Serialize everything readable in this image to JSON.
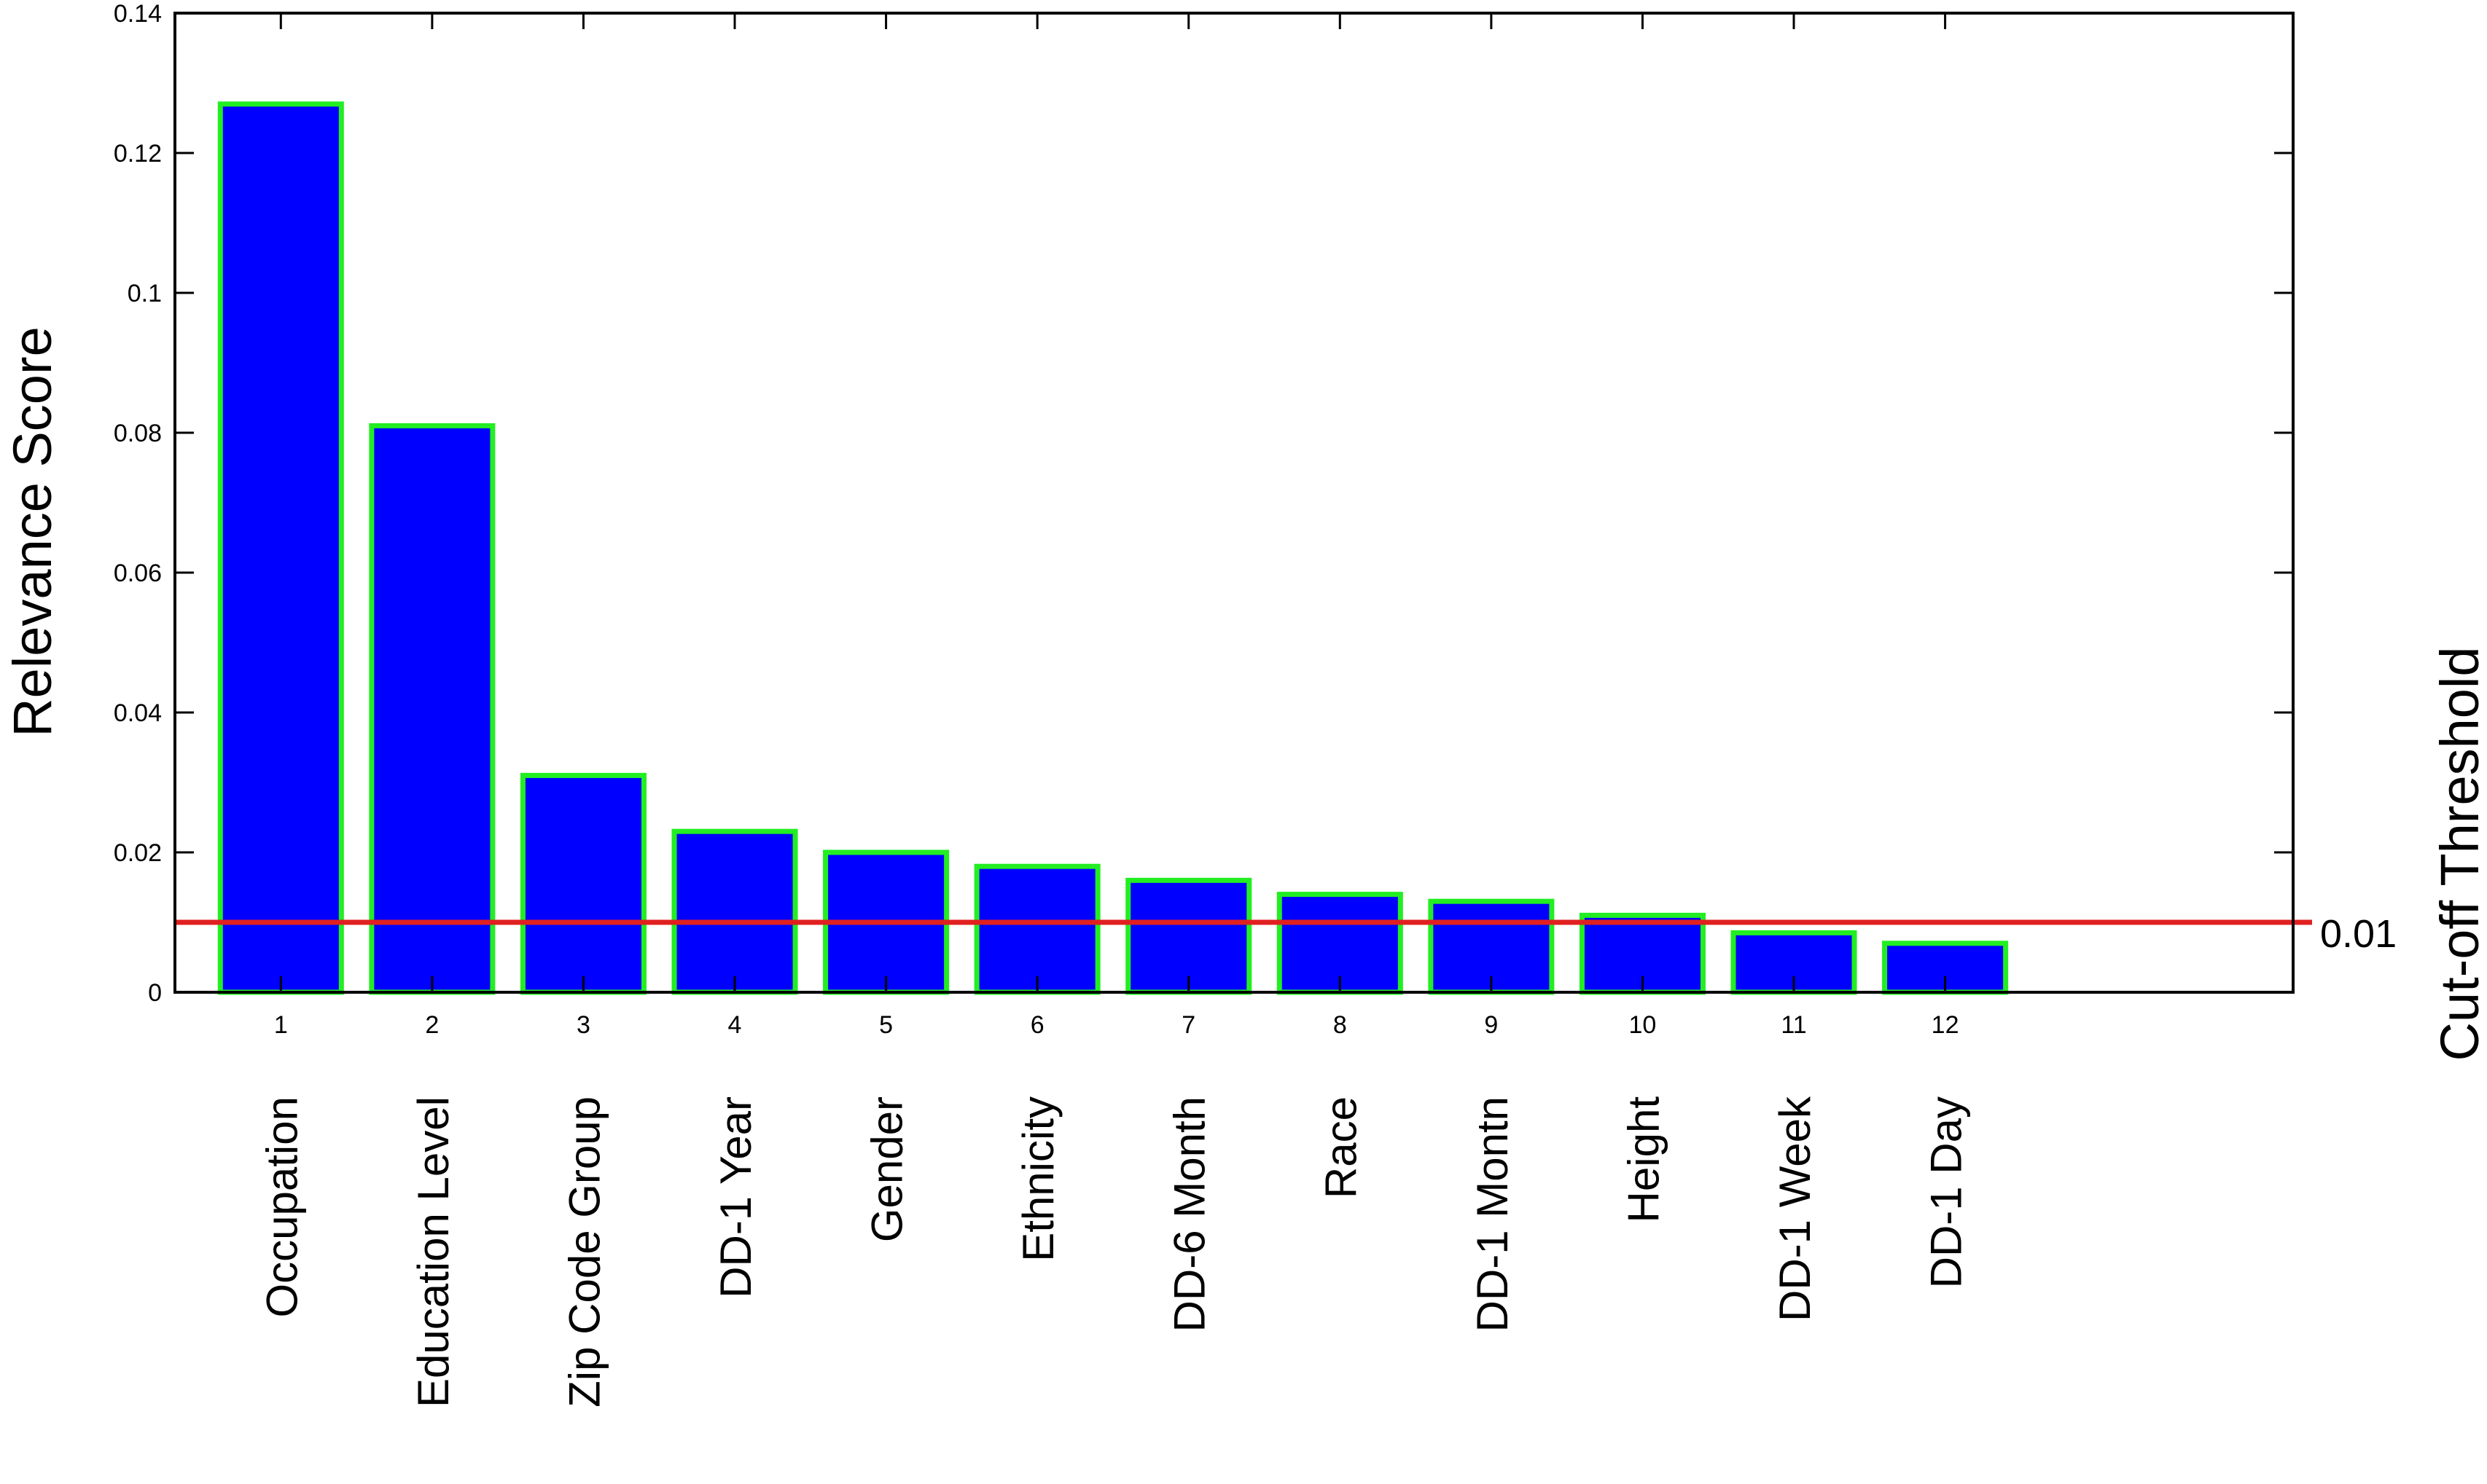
{
  "chart_data": {
    "type": "bar",
    "x_ticks": [
      "1",
      "2",
      "3",
      "4",
      "5",
      "6",
      "7",
      "8",
      "9",
      "10",
      "11",
      "12"
    ],
    "categories": [
      "Occupation",
      "Education Level",
      "Zip Code Group",
      "DD-1 Year",
      "Gender",
      "Ethnicity",
      "DD-6 Month",
      "Race",
      "DD-1 Montn",
      "Height",
      "DD-1 Week",
      "DD-1 Day"
    ],
    "values": [
      0.127,
      0.081,
      0.031,
      0.023,
      0.02,
      0.018,
      0.016,
      0.014,
      0.013,
      0.011,
      0.0085,
      0.007
    ],
    "ylabel": "Relevance Score",
    "ylim": [
      0,
      0.14
    ],
    "yticks": [
      "0",
      "0.02",
      "0.04",
      "0.06",
      "0.08",
      "0.1",
      "0.12",
      "0.14"
    ],
    "xlim": [
      0.3,
      14.3
    ],
    "threshold": {
      "value": 0.01,
      "label": "0.01",
      "title": "Cut-off Threshold",
      "color": "#e02020"
    },
    "bar_fill": "#0000ff",
    "bar_edge": "#22ee22",
    "grid": false
  }
}
